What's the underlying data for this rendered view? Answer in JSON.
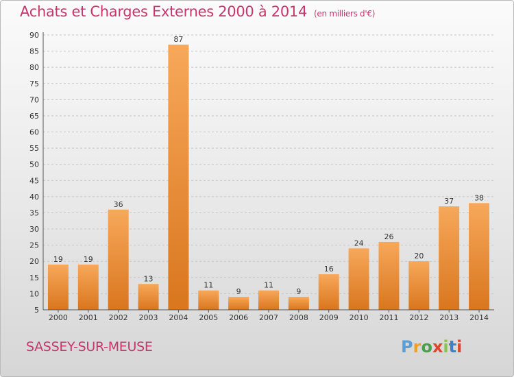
{
  "header": {
    "title": "Achats et Charges Externes 2000 à 2014",
    "unit": "(en milliers d'€)"
  },
  "footer": {
    "location": "SASSEY-SUR-MEUSE",
    "logo_text": "Proxiti"
  },
  "colors": {
    "title": "#c8366c",
    "bar_light": "#f7a85a",
    "bar_dark": "#d9761e",
    "logo": [
      "#5aa0d8",
      "#f0a020",
      "#4aa04a",
      "#e2432f",
      "#8bc34a",
      "#3f7fc8",
      "#e2432f"
    ]
  },
  "chart_data": {
    "type": "bar",
    "categories": [
      "2000",
      "2001",
      "2002",
      "2003",
      "2004",
      "2005",
      "2006",
      "2007",
      "2008",
      "2009",
      "2010",
      "2011",
      "2012",
      "2013",
      "2014"
    ],
    "values": [
      19,
      19,
      36,
      13,
      87,
      11,
      9,
      11,
      9,
      16,
      24,
      26,
      20,
      37,
      38
    ],
    "yticks": [
      5,
      10,
      15,
      20,
      25,
      30,
      35,
      40,
      45,
      50,
      55,
      60,
      65,
      70,
      75,
      80,
      85,
      90
    ],
    "ylim": [
      5,
      90
    ],
    "grid": "horizontal-dashed"
  }
}
